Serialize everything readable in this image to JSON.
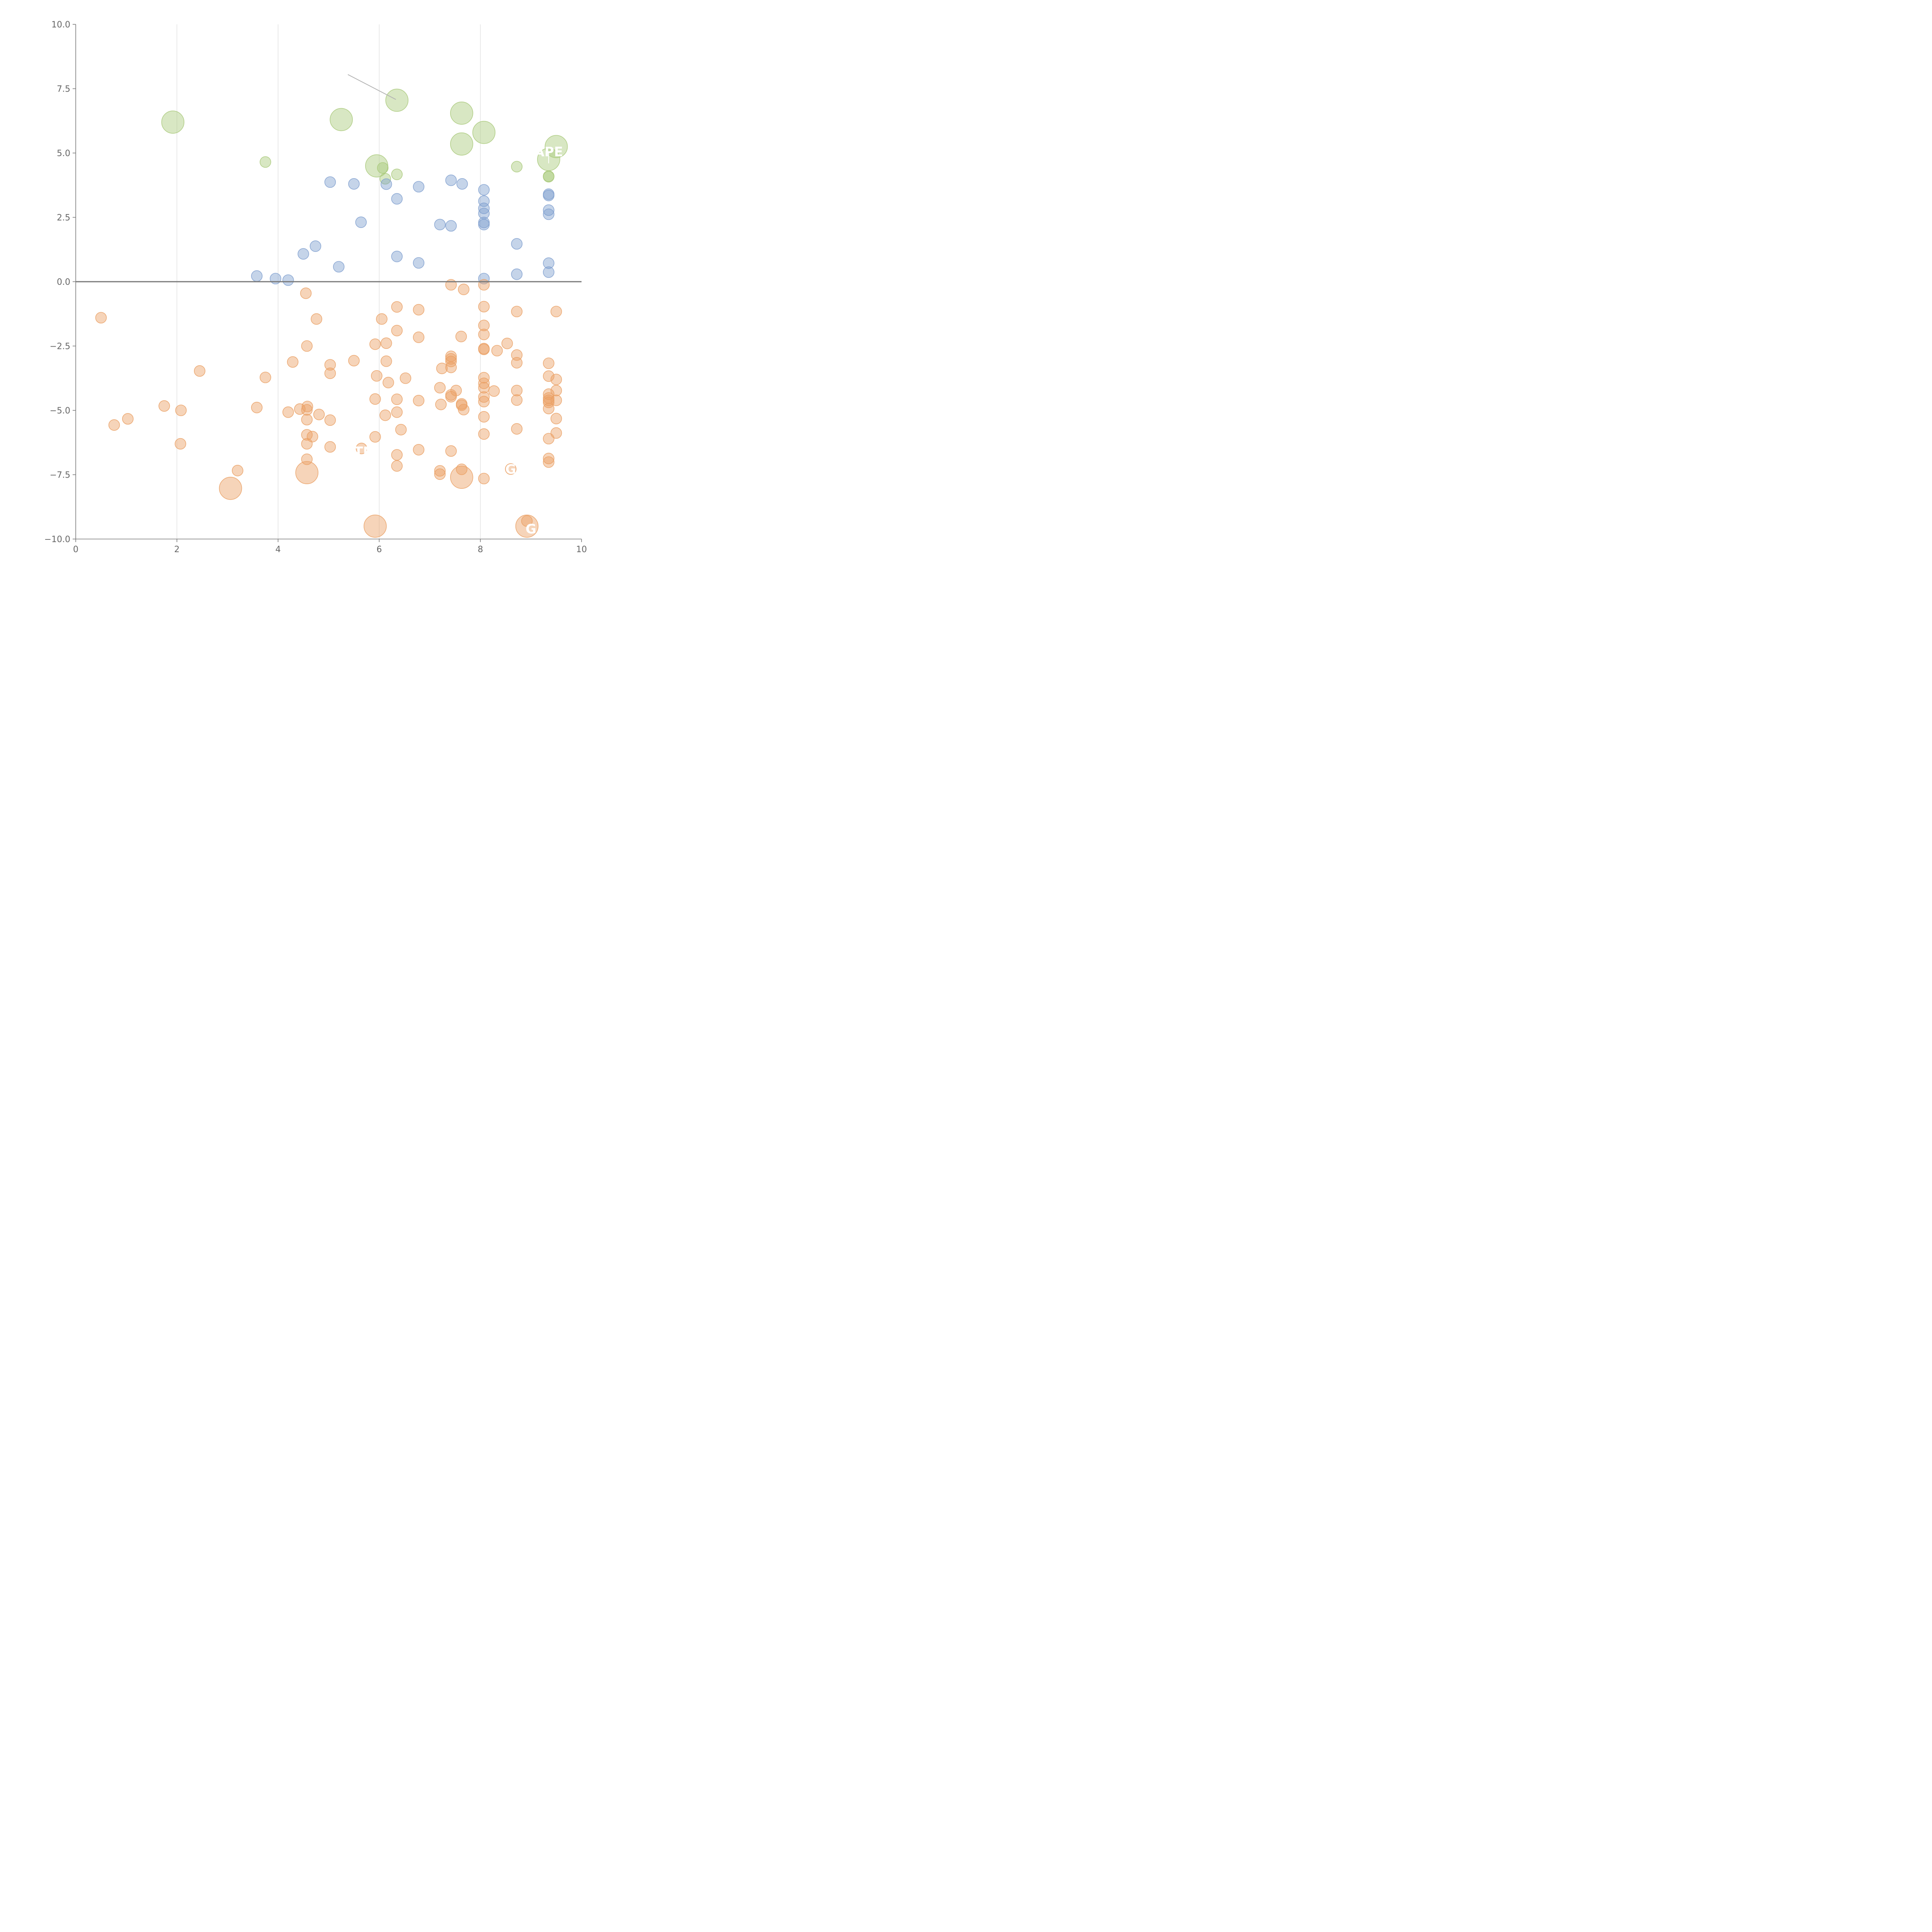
{
  "chart_data": {
    "type": "scatter",
    "title": "",
    "xlabel": "",
    "ylabel": "",
    "xlim": [
      0,
      10
    ],
    "ylim": [
      -10,
      10
    ],
    "x_ticks": [
      "0",
      "2",
      "4",
      "6",
      "8",
      "10"
    ],
    "y_ticks": [
      "−10.0",
      "−7.5",
      "−5.0",
      "−2.5",
      "0.0",
      "2.5",
      "5.0",
      "7.5",
      "10.0"
    ],
    "x_gridlines": [
      2,
      4,
      6,
      8
    ],
    "reference_line_y": 0,
    "colors": {
      "green": "#a9c97a",
      "blue": "#7f9fcf",
      "orange": "#eaa064"
    },
    "series": [
      {
        "color": "green",
        "points": [
          {
            "x": 1.92,
            "y": 6.2,
            "size": "large"
          },
          {
            "x": 5.25,
            "y": 6.3,
            "size": "large"
          },
          {
            "x": 6.35,
            "y": 7.05,
            "size": "large"
          },
          {
            "x": 7.63,
            "y": 6.55,
            "size": "large"
          },
          {
            "x": 8.07,
            "y": 5.8,
            "size": "large"
          },
          {
            "x": 7.63,
            "y": 5.35,
            "size": "large"
          },
          {
            "x": 5.95,
            "y": 4.5,
            "size": "large"
          },
          {
            "x": 9.5,
            "y": 5.25,
            "size": "large"
          },
          {
            "x": 9.35,
            "y": 4.75,
            "size": "large"
          },
          {
            "x": 3.75,
            "y": 4.65,
            "size": "small"
          },
          {
            "x": 6.07,
            "y": 4.42,
            "size": "small"
          },
          {
            "x": 6.12,
            "y": 4.0,
            "size": "small"
          },
          {
            "x": 6.35,
            "y": 4.17,
            "size": "small"
          },
          {
            "x": 8.72,
            "y": 4.47,
            "size": "small"
          },
          {
            "x": 9.35,
            "y": 4.1,
            "size": "small"
          },
          {
            "x": 9.35,
            "y": 4.08,
            "size": "small"
          }
        ]
      },
      {
        "color": "blue",
        "points": [
          {
            "x": 3.58,
            "y": 0.22
          },
          {
            "x": 3.95,
            "y": 0.12
          },
          {
            "x": 4.2,
            "y": 0.06
          },
          {
            "x": 4.5,
            "y": 1.08
          },
          {
            "x": 4.74,
            "y": 1.38
          },
          {
            "x": 5.03,
            "y": 3.87
          },
          {
            "x": 5.5,
            "y": 3.8
          },
          {
            "x": 5.2,
            "y": 0.58
          },
          {
            "x": 5.64,
            "y": 2.31
          },
          {
            "x": 6.14,
            "y": 3.79
          },
          {
            "x": 6.35,
            "y": 3.22
          },
          {
            "x": 6.35,
            "y": 0.98
          },
          {
            "x": 6.78,
            "y": 3.69
          },
          {
            "x": 6.78,
            "y": 0.73
          },
          {
            "x": 7.2,
            "y": 2.22
          },
          {
            "x": 7.42,
            "y": 3.94
          },
          {
            "x": 7.42,
            "y": 2.17
          },
          {
            "x": 7.64,
            "y": 3.8
          },
          {
            "x": 8.07,
            "y": 3.57
          },
          {
            "x": 8.07,
            "y": 3.13
          },
          {
            "x": 8.07,
            "y": 2.85
          },
          {
            "x": 8.07,
            "y": 2.65
          },
          {
            "x": 8.07,
            "y": 2.3
          },
          {
            "x": 8.07,
            "y": 2.22
          },
          {
            "x": 8.07,
            "y": 0.12
          },
          {
            "x": 8.72,
            "y": 1.47
          },
          {
            "x": 8.72,
            "y": 0.29
          },
          {
            "x": 9.35,
            "y": 3.4
          },
          {
            "x": 9.35,
            "y": 3.35
          },
          {
            "x": 9.35,
            "y": 2.78
          },
          {
            "x": 9.35,
            "y": 2.62
          },
          {
            "x": 9.35,
            "y": 0.72
          },
          {
            "x": 9.35,
            "y": 0.37
          }
        ]
      },
      {
        "color": "orange",
        "points": [
          {
            "x": 0.5,
            "y": -1.4
          },
          {
            "x": 0.76,
            "y": -5.57
          },
          {
            "x": 1.03,
            "y": -5.33
          },
          {
            "x": 1.75,
            "y": -4.83
          },
          {
            "x": 2.08,
            "y": -5.0
          },
          {
            "x": 2.07,
            "y": -6.3
          },
          {
            "x": 2.45,
            "y": -3.47
          },
          {
            "x": 3.06,
            "y": -8.03,
            "size": "large"
          },
          {
            "x": 3.2,
            "y": -7.34
          },
          {
            "x": 3.58,
            "y": -4.89
          },
          {
            "x": 3.75,
            "y": -3.72
          },
          {
            "x": 4.2,
            "y": -5.07
          },
          {
            "x": 4.29,
            "y": -3.12
          },
          {
            "x": 4.43,
            "y": -4.95
          },
          {
            "x": 4.55,
            "y": -0.45
          },
          {
            "x": 4.57,
            "y": -4.98
          },
          {
            "x": 4.58,
            "y": -4.85
          },
          {
            "x": 4.57,
            "y": -2.5
          },
          {
            "x": 4.57,
            "y": -5.36
          },
          {
            "x": 4.57,
            "y": -5.95
          },
          {
            "x": 4.57,
            "y": -6.3
          },
          {
            "x": 4.57,
            "y": -6.9
          },
          {
            "x": 4.57,
            "y": -7.42,
            "size": "large"
          },
          {
            "x": 4.68,
            "y": -6.02
          },
          {
            "x": 4.76,
            "y": -1.45
          },
          {
            "x": 4.81,
            "y": -5.16
          },
          {
            "x": 5.03,
            "y": -3.23
          },
          {
            "x": 5.03,
            "y": -3.56
          },
          {
            "x": 5.03,
            "y": -5.38
          },
          {
            "x": 5.03,
            "y": -6.42
          },
          {
            "x": 5.5,
            "y": -3.07
          },
          {
            "x": 5.65,
            "y": -6.48
          },
          {
            "x": 5.92,
            "y": -2.43
          },
          {
            "x": 5.95,
            "y": -3.66
          },
          {
            "x": 5.92,
            "y": -4.56
          },
          {
            "x": 5.92,
            "y": -6.03
          },
          {
            "x": 5.92,
            "y": -9.5,
            "size": "large"
          },
          {
            "x": 6.05,
            "y": -1.45
          },
          {
            "x": 6.14,
            "y": -2.39
          },
          {
            "x": 6.14,
            "y": -3.09
          },
          {
            "x": 6.18,
            "y": -3.92
          },
          {
            "x": 6.12,
            "y": -5.19
          },
          {
            "x": 6.35,
            "y": -0.98
          },
          {
            "x": 6.35,
            "y": -1.9
          },
          {
            "x": 6.35,
            "y": -4.57
          },
          {
            "x": 6.35,
            "y": -5.07
          },
          {
            "x": 6.35,
            "y": -6.73
          },
          {
            "x": 6.35,
            "y": -7.16
          },
          {
            "x": 6.43,
            "y": -5.75
          },
          {
            "x": 6.52,
            "y": -3.75
          },
          {
            "x": 6.78,
            "y": -1.09
          },
          {
            "x": 6.78,
            "y": -2.16
          },
          {
            "x": 6.78,
            "y": -4.62
          },
          {
            "x": 6.78,
            "y": -6.53
          },
          {
            "x": 7.2,
            "y": -4.12
          },
          {
            "x": 7.22,
            "y": -4.77
          },
          {
            "x": 7.24,
            "y": -3.37
          },
          {
            "x": 7.2,
            "y": -7.35
          },
          {
            "x": 7.2,
            "y": -7.48
          },
          {
            "x": 7.42,
            "y": -0.12
          },
          {
            "x": 7.42,
            "y": -2.9
          },
          {
            "x": 7.42,
            "y": -3.0
          },
          {
            "x": 7.42,
            "y": -3.1
          },
          {
            "x": 7.42,
            "y": -3.33
          },
          {
            "x": 7.42,
            "y": -4.4
          },
          {
            "x": 7.42,
            "y": -4.47
          },
          {
            "x": 7.42,
            "y": -6.58
          },
          {
            "x": 7.52,
            "y": -4.23
          },
          {
            "x": 7.62,
            "y": -2.13
          },
          {
            "x": 7.63,
            "y": -4.75
          },
          {
            "x": 7.63,
            "y": -4.8
          },
          {
            "x": 7.63,
            "y": -7.29
          },
          {
            "x": 7.63,
            "y": -7.6,
            "size": "large"
          },
          {
            "x": 7.67,
            "y": -0.3
          },
          {
            "x": 7.67,
            "y": -4.97
          },
          {
            "x": 8.07,
            "y": -0.12
          },
          {
            "x": 8.07,
            "y": -0.97
          },
          {
            "x": 8.07,
            "y": -1.7
          },
          {
            "x": 8.07,
            "y": -2.05
          },
          {
            "x": 8.07,
            "y": -2.6
          },
          {
            "x": 8.07,
            "y": -2.63
          },
          {
            "x": 8.07,
            "y": -3.73
          },
          {
            "x": 8.07,
            "y": -3.95
          },
          {
            "x": 8.07,
            "y": -4.12
          },
          {
            "x": 8.07,
            "y": -4.48
          },
          {
            "x": 8.07,
            "y": -4.66
          },
          {
            "x": 8.07,
            "y": -5.25
          },
          {
            "x": 8.07,
            "y": -5.92
          },
          {
            "x": 8.07,
            "y": -7.65
          },
          {
            "x": 8.27,
            "y": -4.25
          },
          {
            "x": 8.33,
            "y": -2.68
          },
          {
            "x": 8.53,
            "y": -2.4
          },
          {
            "x": 8.6,
            "y": -7.28
          },
          {
            "x": 8.72,
            "y": -1.16
          },
          {
            "x": 8.72,
            "y": -2.85
          },
          {
            "x": 8.72,
            "y": -3.15
          },
          {
            "x": 8.72,
            "y": -4.23
          },
          {
            "x": 8.72,
            "y": -4.6
          },
          {
            "x": 8.72,
            "y": -5.72
          },
          {
            "x": 8.92,
            "y": -9.5,
            "size": "large"
          },
          {
            "x": 8.92,
            "y": -9.3
          },
          {
            "x": 9.35,
            "y": -3.17
          },
          {
            "x": 9.35,
            "y": -3.67
          },
          {
            "x": 9.35,
            "y": -4.37
          },
          {
            "x": 9.35,
            "y": -4.52
          },
          {
            "x": 9.35,
            "y": -4.61
          },
          {
            "x": 9.35,
            "y": -4.69
          },
          {
            "x": 9.35,
            "y": -4.93
          },
          {
            "x": 9.35,
            "y": -6.1
          },
          {
            "x": 9.35,
            "y": -6.87
          },
          {
            "x": 9.35,
            "y": -7.01
          },
          {
            "x": 9.5,
            "y": -1.16
          },
          {
            "x": 9.5,
            "y": -3.8
          },
          {
            "x": 9.5,
            "y": -4.23
          },
          {
            "x": 9.5,
            "y": -4.61
          },
          {
            "x": 9.5,
            "y": -5.32
          },
          {
            "x": 9.5,
            "y": -5.88
          }
        ]
      }
    ],
    "annotations": [
      {
        "text": "APE",
        "x": 9.35,
        "y": 5.05,
        "tx": 9.35,
        "ty": 4.6,
        "line": "white"
      },
      {
        "text": "TM",
        "x": 5.72,
        "y": -6.6
      },
      {
        "text": "G",
        "x": 8.6,
        "y": -7.28
      },
      {
        "text": "G",
        "x": 9.0,
        "y": -9.6
      },
      {
        "text": "",
        "x": 5.38,
        "y": 8.05,
        "tx": 6.33,
        "ty": 7.08,
        "line": "gray"
      }
    ]
  }
}
